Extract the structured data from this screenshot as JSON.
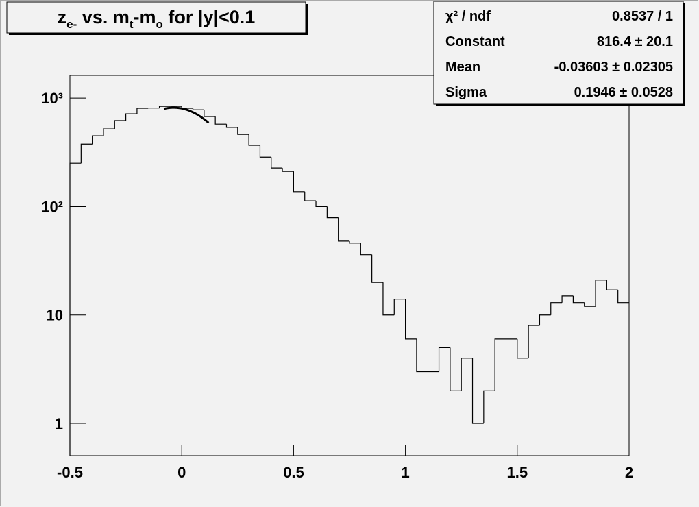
{
  "chart_data": {
    "type": "histogram",
    "title_parts": [
      "z",
      "e-",
      " vs. m",
      "t",
      "-m",
      "o",
      " for |y|<0.1"
    ],
    "bins": [
      -0.5,
      -0.45,
      -0.4,
      -0.35,
      -0.3,
      -0.25,
      -0.2,
      -0.15,
      -0.1,
      -0.05,
      0,
      0.05,
      0.1,
      0.15,
      0.2,
      0.25,
      0.3,
      0.35,
      0.4,
      0.45,
      0.5,
      0.55,
      0.6,
      0.65,
      0.7,
      0.75,
      0.8,
      0.85,
      0.9,
      0.95,
      1,
      1.05,
      1.1,
      1.15,
      1.2,
      1.25,
      1.3,
      1.35,
      1.4,
      1.45,
      1.5,
      1.55,
      1.6,
      1.65,
      1.7,
      1.75,
      1.8,
      1.85,
      1.9,
      1.95,
      2
    ],
    "counts": [
      251,
      377,
      450,
      520,
      620,
      716,
      805,
      810,
      840,
      840,
      805,
      780,
      676,
      575,
      537,
      463,
      367,
      286,
      227,
      211,
      137,
      113,
      100,
      79,
      48,
      46,
      36,
      20,
      10,
      14,
      6,
      3,
      3,
      5,
      2,
      4,
      1,
      2,
      6,
      6,
      4,
      8,
      10,
      13,
      15,
      13,
      12,
      21,
      17,
      13
    ],
    "color": "#000000",
    "xlim": [
      -0.5,
      2
    ],
    "ylim": [
      0.505,
      1620
    ],
    "log_y": true,
    "xticks": [
      -0.5,
      0,
      0.5,
      1,
      1.5,
      2
    ],
    "yticks": [
      1,
      10,
      {
        "value": 100,
        "label": "10²"
      },
      {
        "value": 1000,
        "label": "10³"
      }
    ],
    "fit": {
      "constant": 816.4,
      "mean": -0.03603,
      "sigma": 0.1946,
      "xrange": [
        -0.08,
        0.12
      ]
    },
    "stats": [
      {
        "label": "χ² / ndf",
        "text": "0.8537 / 1"
      },
      {
        "label": "Constant",
        "text": "816.4 ± 20.1"
      },
      {
        "label": "Mean",
        "text": "-0.03603 ± 0.02305"
      },
      {
        "label": "Sigma",
        "text": "0.1946 ± 0.0528"
      }
    ]
  }
}
